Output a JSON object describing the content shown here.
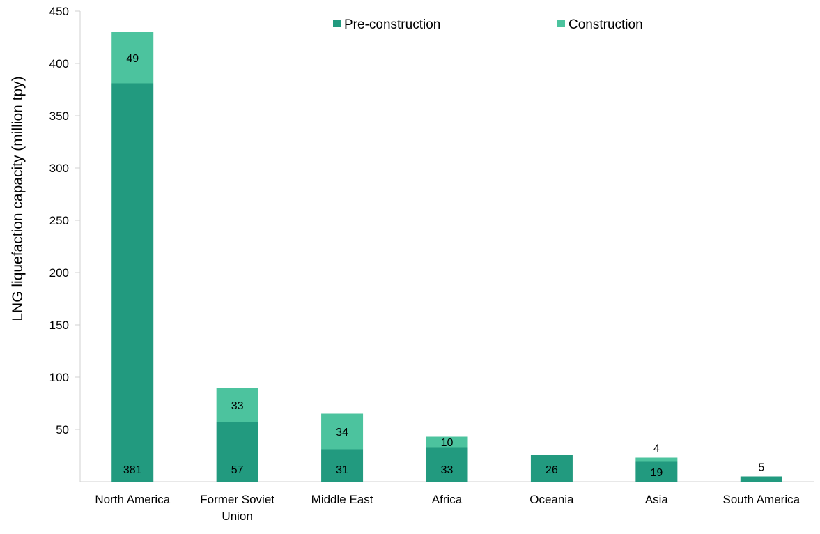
{
  "chart_data": {
    "type": "bar",
    "stacked": true,
    "ylabel": "LNG liquefaction capacity (million tpy)",
    "ylim": [
      0,
      450
    ],
    "yticks": [
      50,
      100,
      150,
      200,
      250,
      300,
      350,
      400,
      450
    ],
    "categories": [
      [
        "North America"
      ],
      [
        "Former Soviet",
        "Union"
      ],
      [
        "Middle East"
      ],
      [
        "Africa"
      ],
      [
        "Oceania"
      ],
      [
        "Asia"
      ],
      [
        "South America"
      ]
    ],
    "series": [
      {
        "name": "Pre-construction",
        "color": "#229a7f",
        "values": [
          381,
          57,
          31,
          33,
          26,
          19,
          5
        ]
      },
      {
        "name": "Construction",
        "color": "#4cc39e",
        "values": [
          49,
          33,
          34,
          10,
          0,
          4,
          0
        ]
      }
    ],
    "data_labels": [
      [
        "381",
        "57",
        "31",
        "33",
        "26",
        "19",
        "5"
      ],
      [
        "49",
        "33",
        "34",
        "10",
        "",
        "4",
        ""
      ]
    ],
    "legend_position": "top-center",
    "grid": false
  }
}
